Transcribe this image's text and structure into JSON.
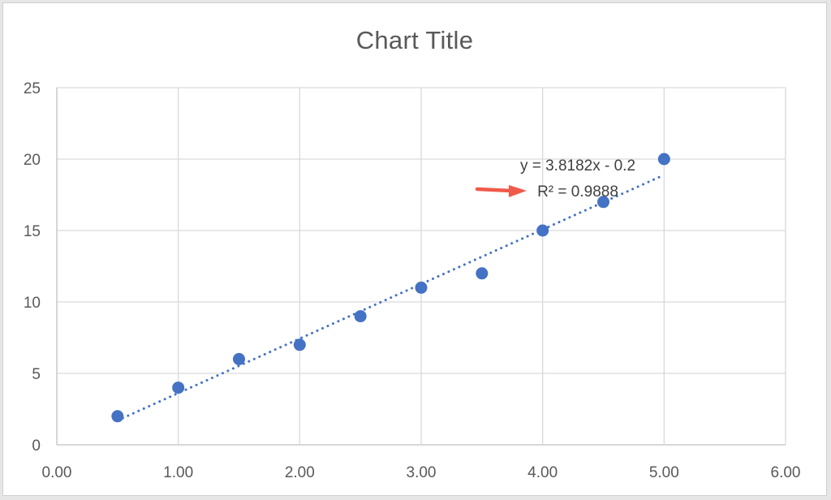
{
  "chart_data": {
    "type": "scatter",
    "title": "Chart Title",
    "xlabel": "",
    "ylabel": "",
    "x": [
      0.5,
      1.0,
      1.5,
      2.0,
      2.5,
      3.0,
      3.5,
      4.0,
      4.5,
      5.0
    ],
    "y": [
      2,
      4,
      6,
      7,
      9,
      11,
      12,
      15,
      17,
      20
    ],
    "xlim": [
      0,
      6
    ],
    "ylim": [
      0,
      25
    ],
    "x_ticks": [
      "0.00",
      "1.00",
      "2.00",
      "3.00",
      "4.00",
      "5.00",
      "6.00"
    ],
    "y_ticks": [
      "0",
      "5",
      "10",
      "15",
      "20",
      "25"
    ],
    "grid": true,
    "trendline": {
      "type": "linear",
      "style": "dotted",
      "slope": 3.8182,
      "intercept": -0.2,
      "equation_label": "y = 3.8182x - 0.2",
      "r2_label": "R² = 0.9888"
    },
    "annotation": {
      "type": "arrow",
      "points_to": "r2_label",
      "color": "#f05a4a"
    },
    "colors": {
      "marker": "#4472c4",
      "trendline": "#4472c4",
      "grid": "#d9d9d9",
      "axis": "#bfbfbf",
      "text": "#595959"
    }
  }
}
